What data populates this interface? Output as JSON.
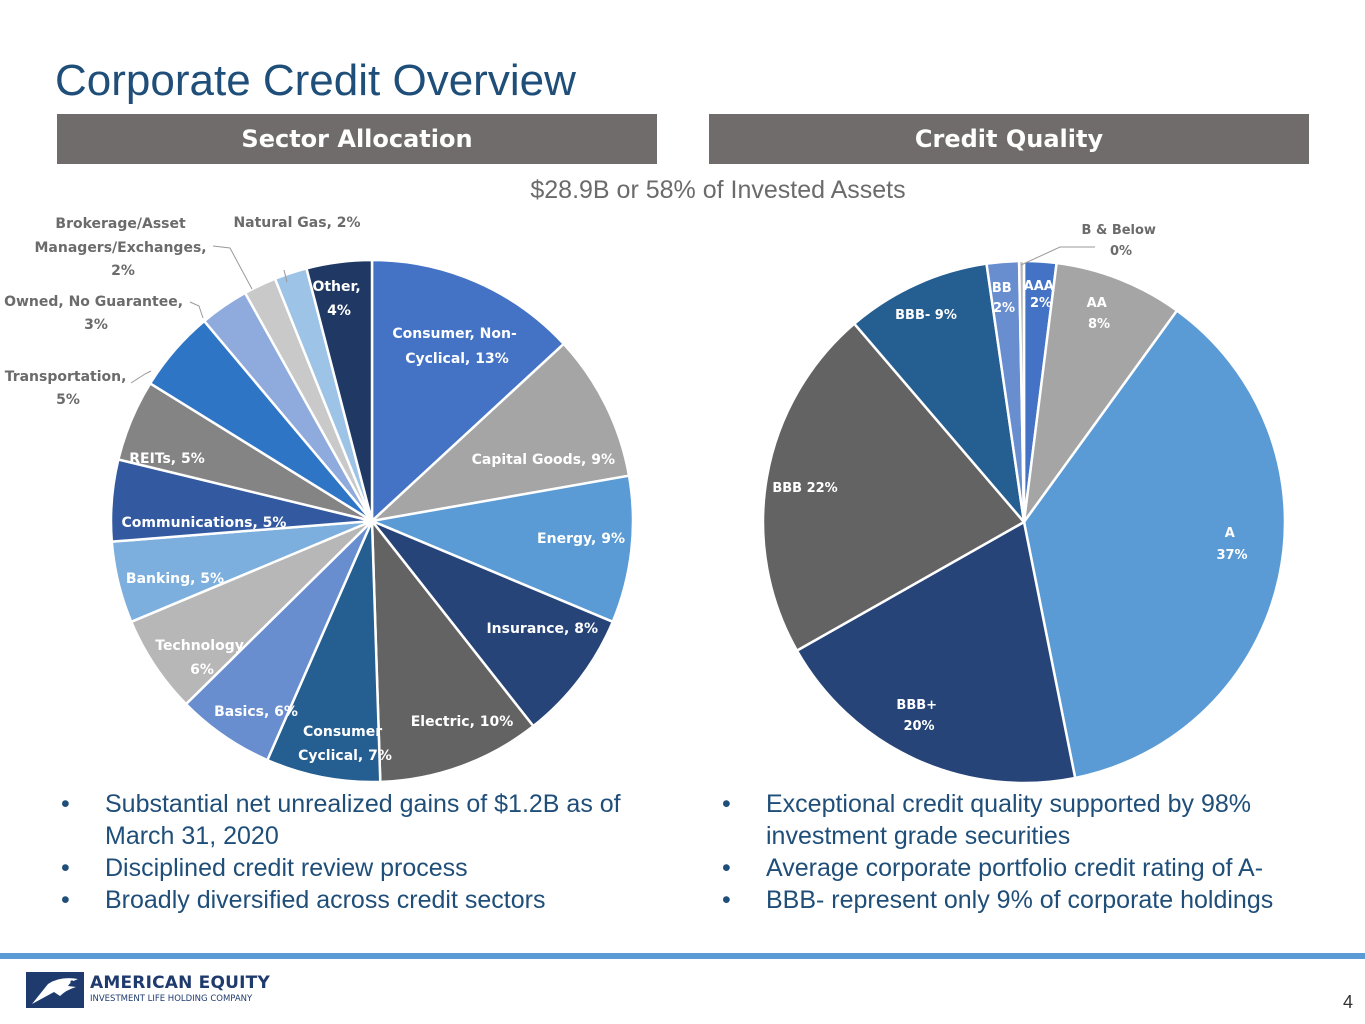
{
  "title": "Corporate Credit Overview",
  "sector_header": "Sector Allocation",
  "quality_header": "Credit Quality",
  "subtitle": "$28.9B or 58% of Invested Assets",
  "colors": {
    "title": "#1f4e79",
    "header_bg": "#716c6c",
    "footer_rule": "#5b9bd5"
  },
  "chart_data": [
    {
      "type": "pie",
      "title": "Sector Allocation",
      "unit": "%",
      "slices": [
        {
          "name": "Consumer, Non-Cyclical",
          "label": [
            "Consumer, Non-",
            "Cyclical, 13%"
          ],
          "value": 13,
          "color": "#4472c4"
        },
        {
          "name": "Capital Goods",
          "label": [
            "Capital Goods, 9%"
          ],
          "value": 9,
          "color": "#a5a5a5"
        },
        {
          "name": "Energy",
          "label": [
            "Energy, 9%"
          ],
          "value": 9,
          "color": "#5b9bd5"
        },
        {
          "name": "Insurance",
          "label": [
            "Insurance, 8%"
          ],
          "value": 8,
          "color": "#264478"
        },
        {
          "name": "Electric",
          "label": [
            "Electric, 10%"
          ],
          "value": 10,
          "color": "#636363"
        },
        {
          "name": "Consumer Cyclical",
          "label": [
            "Consumer",
            "Cyclical, 7%"
          ],
          "value": 7,
          "color": "#255e91"
        },
        {
          "name": "Basics",
          "label": [
            "Basics, 6%"
          ],
          "value": 6,
          "color": "#698ed0"
        },
        {
          "name": "Technology",
          "label": [
            "Technology",
            "6%"
          ],
          "value": 6,
          "color": "#b7b7b7"
        },
        {
          "name": "Banking",
          "label": [
            "Banking, 5%"
          ],
          "value": 5,
          "color": "#7cafdd"
        },
        {
          "name": "Communications",
          "label": [
            "Communications, 5%"
          ],
          "value": 5,
          "color": "#335aa1"
        },
        {
          "name": "REITs",
          "label": [
            "REITs, 5%"
          ],
          "value": 5,
          "color": "#848484"
        },
        {
          "name": "Transportation",
          "label": [
            "Transportation,",
            "5%"
          ],
          "value": 5,
          "color": "#2e75c6"
        },
        {
          "name": "Owned, No Guarantee",
          "label": [
            "Owned, No Guarantee,",
            "3%"
          ],
          "value": 3,
          "color": "#8faadc"
        },
        {
          "name": "Brokerage/Asset Managers/Exchanges",
          "label": [
            "Brokerage/Asset",
            "Managers/Exchanges,",
            "2%"
          ],
          "value": 2,
          "color": "#c9c9c9"
        },
        {
          "name": "Natural Gas",
          "label": [
            "Natural Gas, 2%"
          ],
          "value": 2,
          "color": "#9dc3e6"
        },
        {
          "name": "Other",
          "label": [
            "Other,",
            "4%"
          ],
          "value": 4,
          "color": "#203864"
        }
      ]
    },
    {
      "type": "pie",
      "title": "Credit Quality",
      "unit": "%",
      "slices": [
        {
          "name": "AAA",
          "label": [
            "AAA",
            "2%"
          ],
          "value": 2,
          "color": "#4472c4"
        },
        {
          "name": "AA",
          "label": [
            "AA",
            "8%"
          ],
          "value": 8,
          "color": "#a5a5a5"
        },
        {
          "name": "A",
          "label": [
            "A",
            "37%"
          ],
          "value": 37,
          "color": "#5b9bd5"
        },
        {
          "name": "BBB+",
          "label": [
            "BBB+",
            "20%"
          ],
          "value": 20,
          "color": "#264478"
        },
        {
          "name": "BBB",
          "label": [
            "BBB 22%"
          ],
          "value": 22,
          "color": "#636363"
        },
        {
          "name": "BBB-",
          "label": [
            "BBB- 9%"
          ],
          "value": 9,
          "color": "#255e91"
        },
        {
          "name": "BB",
          "label": [
            "BB",
            "2%"
          ],
          "value": 2,
          "color": "#698ed0"
        },
        {
          "name": "B & Below",
          "label": [
            "B & Below",
            "0%"
          ],
          "value": 0.3,
          "color": "#b7b7b7"
        }
      ]
    }
  ],
  "left_bullets": [
    "Substantial net unrealized gains of $1.2B as of March 31, 2020",
    "Disciplined credit review process",
    "Broadly diversified across credit sectors"
  ],
  "right_bullets": [
    "Exceptional credit quality supported by 98% investment grade securities",
    "Average corporate portfolio credit rating of A-",
    "BBB- represent only 9% of corporate holdings"
  ],
  "logo": {
    "name": "AMERICAN EQUITY",
    "tagline": "INVESTMENT LIFE HOLDING COMPANY"
  },
  "page_number": "4"
}
